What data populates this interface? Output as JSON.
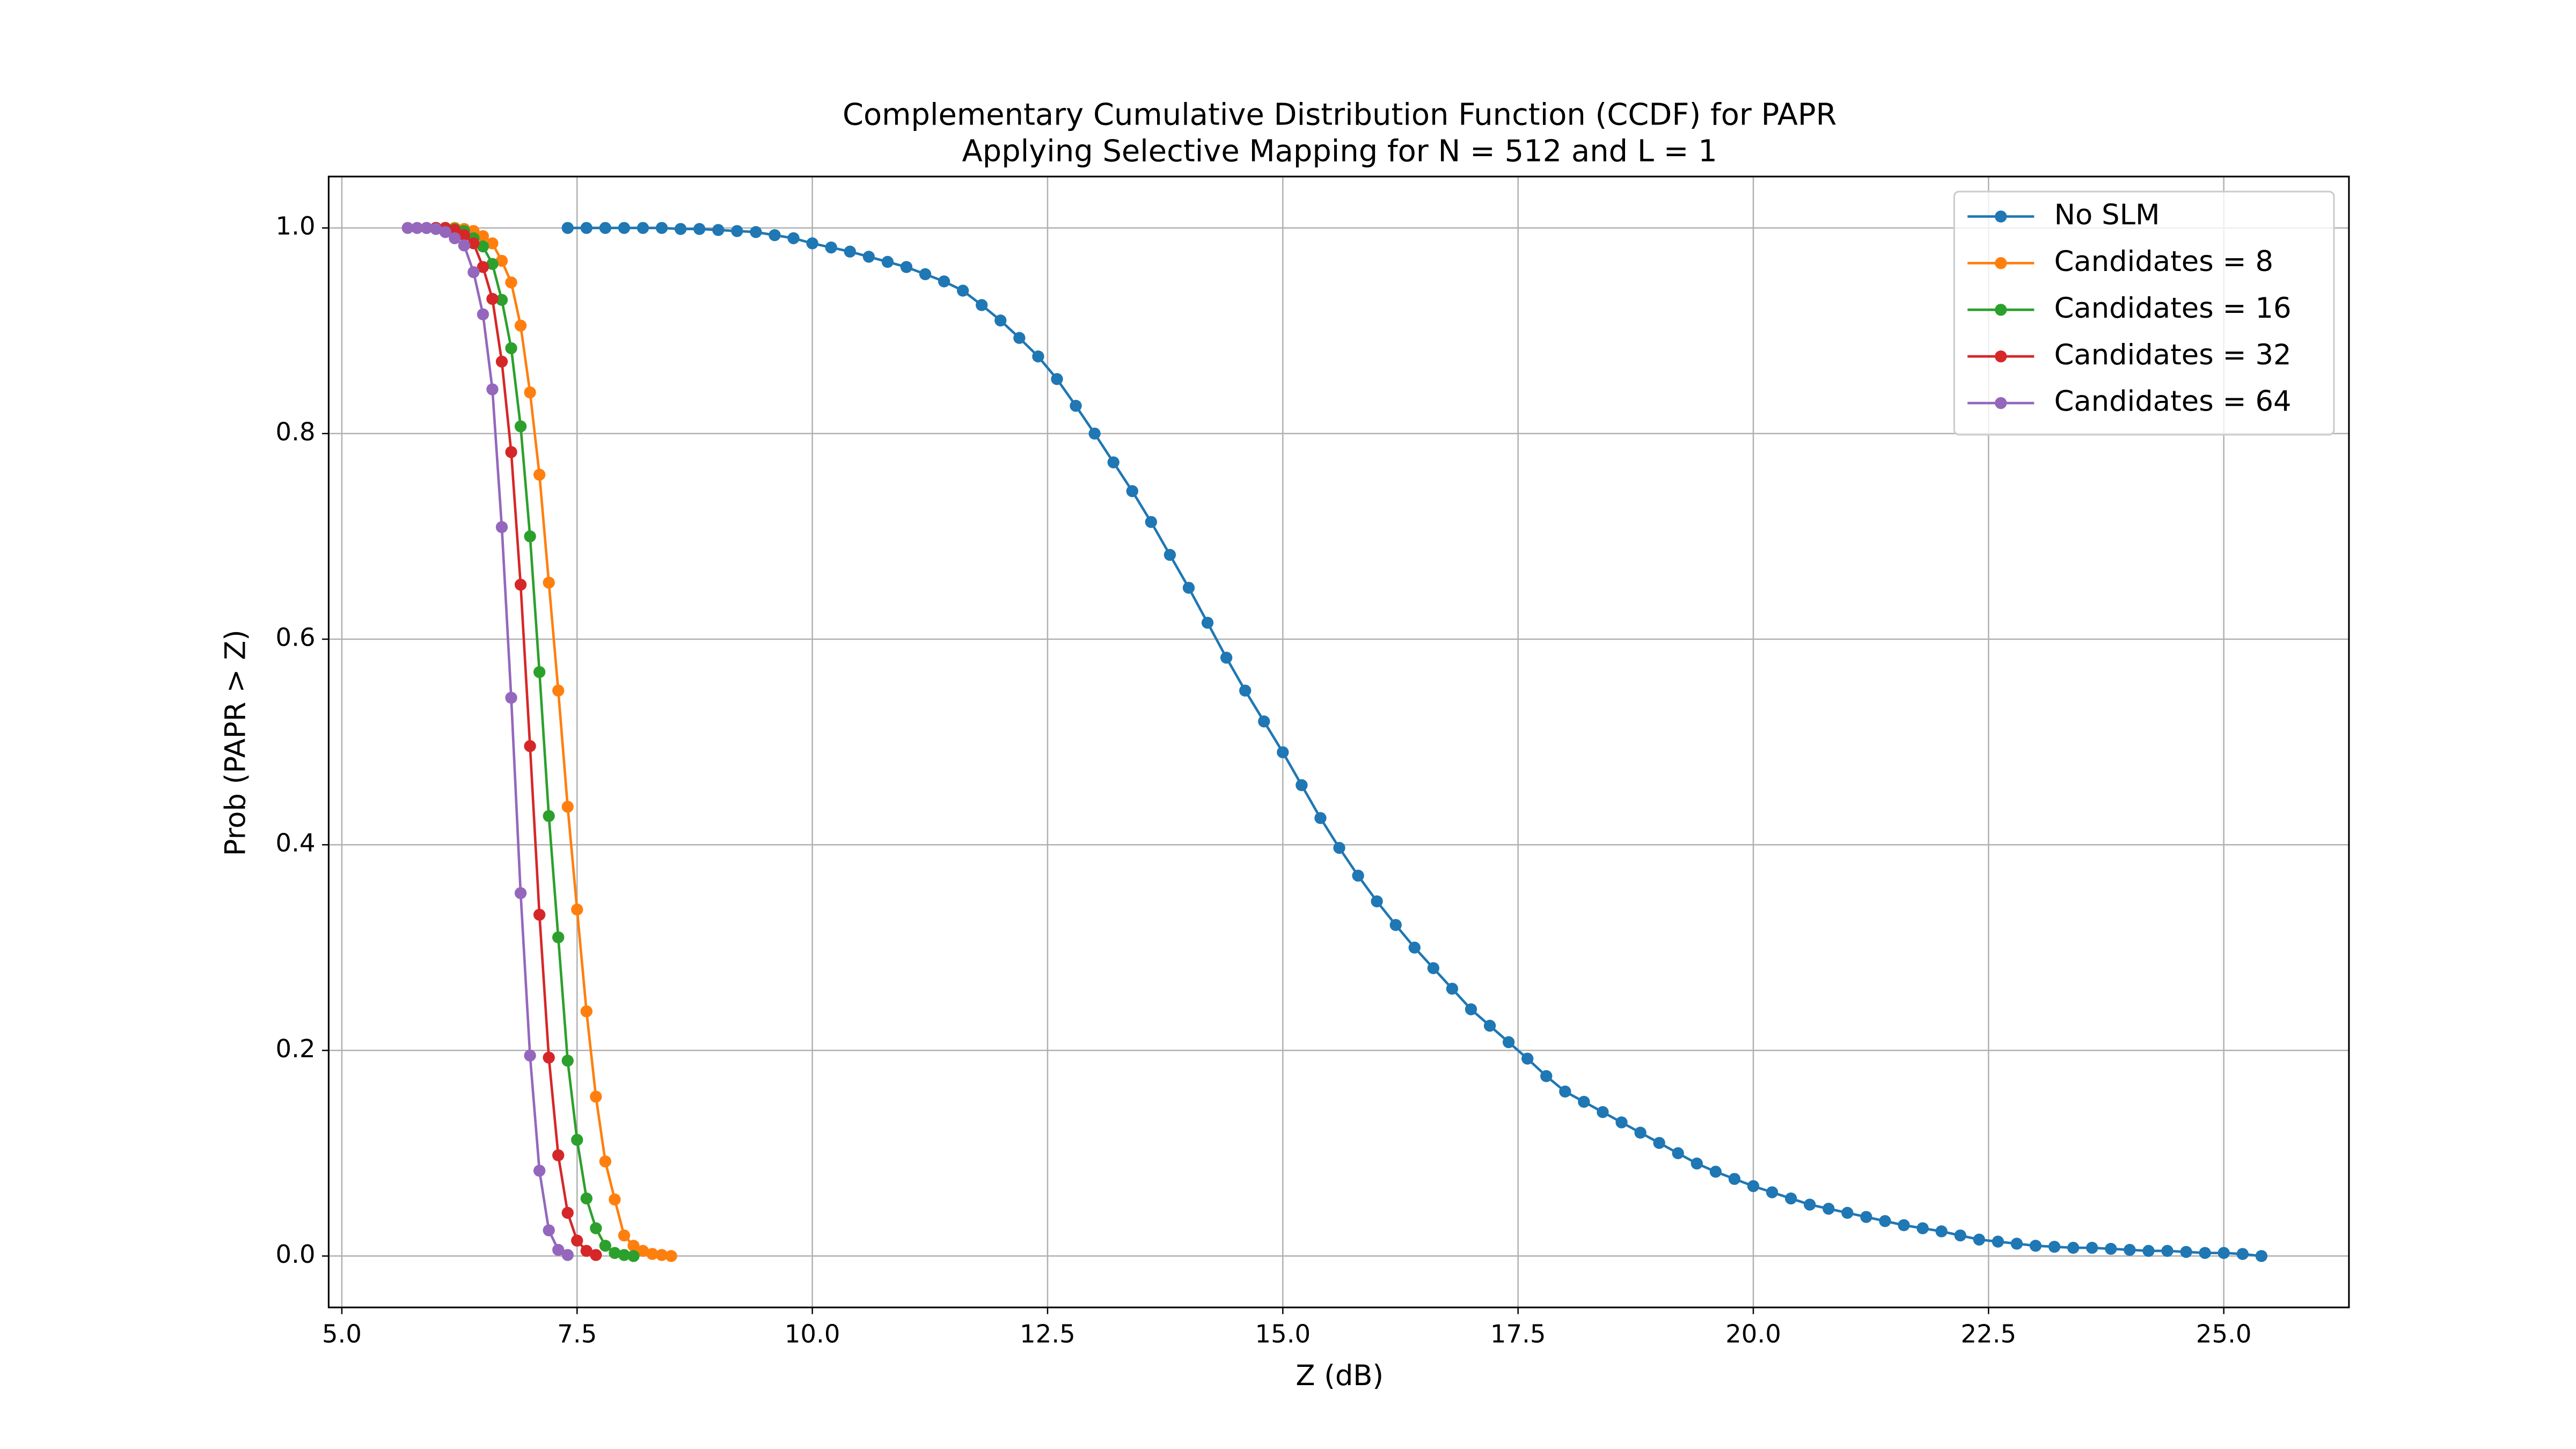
{
  "chart_data": {
    "type": "line",
    "title": "Complementary Cumulative Distribution Function (CCDF) for PAPR",
    "subtitle": "Applying Selective Mapping for N = 512 and L = 1",
    "xlabel": "Z (dB)",
    "ylabel": "Prob (PAPR > Z)",
    "xlim": [
      4.86,
      26.33
    ],
    "ylim": [
      -0.05,
      1.05
    ],
    "xticks": [
      {
        "value": 5,
        "label": "5.0"
      },
      7.5,
      {
        "value": 10,
        "label": "10.0"
      },
      12.5,
      {
        "value": 15,
        "label": "15.0"
      },
      17.5,
      {
        "value": 20,
        "label": "20.0"
      },
      22.5,
      {
        "value": 25,
        "label": "25.0"
      }
    ],
    "yticks": [
      {
        "value": 0,
        "label": "0.0"
      },
      0.2,
      0.4,
      0.6,
      0.8,
      {
        "value": 1,
        "label": "1.0"
      }
    ],
    "grid": true,
    "legend": "upper right",
    "series": [
      {
        "name": "No SLM",
        "color": "#1f77b4",
        "x": [
          7.4,
          7.6,
          7.8,
          8.0,
          8.2,
          8.4,
          8.6,
          8.8,
          9.0,
          9.2,
          9.4,
          9.6,
          9.8,
          10.0,
          10.2,
          10.4,
          10.6,
          10.8,
          11.0,
          11.2,
          11.4,
          11.6,
          11.8,
          12.0,
          12.2,
          12.4,
          12.6,
          12.8,
          13.0,
          13.2,
          13.4,
          13.6,
          13.8,
          14.0,
          14.2,
          14.4,
          14.6,
          14.8,
          15.0,
          15.2,
          15.4,
          15.6,
          15.8,
          16.0,
          16.2,
          16.4,
          16.6,
          16.8,
          17.0,
          17.2,
          17.4,
          17.6,
          17.8,
          18.0,
          18.2,
          18.4,
          18.6,
          18.8,
          19.0,
          19.2,
          19.4,
          19.6,
          19.8,
          20.0,
          20.2,
          20.4,
          20.6,
          20.8,
          21.0,
          21.2,
          21.4,
          21.6,
          21.8,
          22.0,
          22.2,
          22.4,
          22.6,
          22.8,
          23.0,
          23.2,
          23.4,
          23.6,
          23.8,
          24.0,
          24.2,
          24.4,
          24.6,
          24.8,
          25.0,
          25.2,
          25.4
        ],
        "values": [
          1.0,
          1.0,
          1.0,
          1.0,
          1.0,
          1.0,
          0.999,
          0.999,
          0.998,
          0.997,
          0.996,
          0.993,
          0.99,
          0.985,
          0.981,
          0.977,
          0.972,
          0.967,
          0.962,
          0.955,
          0.948,
          0.939,
          0.925,
          0.91,
          0.893,
          0.875,
          0.853,
          0.827,
          0.8,
          0.772,
          0.744,
          0.714,
          0.682,
          0.65,
          0.616,
          0.582,
          0.55,
          0.52,
          0.49,
          0.458,
          0.426,
          0.397,
          0.37,
          0.345,
          0.322,
          0.3,
          0.28,
          0.26,
          0.24,
          0.224,
          0.208,
          0.192,
          0.175,
          0.16,
          0.15,
          0.14,
          0.13,
          0.12,
          0.11,
          0.1,
          0.09,
          0.082,
          0.075,
          0.068,
          0.062,
          0.056,
          0.05,
          0.046,
          0.042,
          0.038,
          0.034,
          0.03,
          0.027,
          0.024,
          0.02,
          0.016,
          0.014,
          0.012,
          0.01,
          0.009,
          0.008,
          0.008,
          0.007,
          0.006,
          0.005,
          0.005,
          0.004,
          0.003,
          0.003,
          0.002,
          0.0
        ]
      },
      {
        "name": "Candidates = 8",
        "color": "#ff7f0e",
        "x": [
          6.0,
          6.1,
          6.2,
          6.3,
          6.4,
          6.5,
          6.6,
          6.7,
          6.8,
          6.9,
          7.0,
          7.1,
          7.2,
          7.3,
          7.4,
          7.5,
          7.6,
          7.7,
          7.8,
          7.9,
          8.0,
          8.1,
          8.2,
          8.3,
          8.4,
          8.5
        ],
        "values": [
          1.0,
          1.0,
          1.0,
          0.999,
          0.997,
          0.992,
          0.985,
          0.968,
          0.947,
          0.905,
          0.84,
          0.76,
          0.655,
          0.55,
          0.437,
          0.337,
          0.238,
          0.155,
          0.092,
          0.055,
          0.02,
          0.01,
          0.005,
          0.002,
          0.001,
          0.0
        ]
      },
      {
        "name": "Candidates = 16",
        "color": "#2ca02c",
        "x": [
          6.0,
          6.1,
          6.2,
          6.3,
          6.4,
          6.5,
          6.6,
          6.7,
          6.8,
          6.9,
          7.0,
          7.1,
          7.2,
          7.3,
          7.4,
          7.5,
          7.6,
          7.7,
          7.8,
          7.9,
          8.0,
          8.1
        ],
        "values": [
          1.0,
          1.0,
          0.999,
          0.997,
          0.99,
          0.982,
          0.965,
          0.93,
          0.883,
          0.807,
          0.7,
          0.568,
          0.428,
          0.31,
          0.19,
          0.113,
          0.056,
          0.027,
          0.01,
          0.003,
          0.001,
          0.0
        ]
      },
      {
        "name": "Candidates = 32",
        "color": "#d62728",
        "x": [
          5.9,
          6.0,
          6.1,
          6.2,
          6.3,
          6.4,
          6.5,
          6.6,
          6.7,
          6.8,
          6.9,
          7.0,
          7.1,
          7.2,
          7.3,
          7.4,
          7.5,
          7.6,
          7.7
        ],
        "values": [
          1.0,
          1.0,
          1.0,
          0.998,
          0.993,
          0.985,
          0.962,
          0.931,
          0.87,
          0.782,
          0.653,
          0.496,
          0.332,
          0.193,
          0.098,
          0.042,
          0.015,
          0.005,
          0.001
        ]
      },
      {
        "name": "Candidates = 64",
        "color": "#9467bd",
        "x": [
          5.7,
          5.8,
          5.9,
          6.0,
          6.1,
          6.2,
          6.3,
          6.4,
          6.5,
          6.6,
          6.7,
          6.8,
          6.9,
          7.0,
          7.1,
          7.2,
          7.3,
          7.4
        ],
        "values": [
          1.0,
          1.0,
          1.0,
          0.999,
          0.996,
          0.99,
          0.983,
          0.957,
          0.916,
          0.843,
          0.709,
          0.543,
          0.353,
          0.195,
          0.083,
          0.025,
          0.006,
          0.001
        ]
      }
    ]
  }
}
